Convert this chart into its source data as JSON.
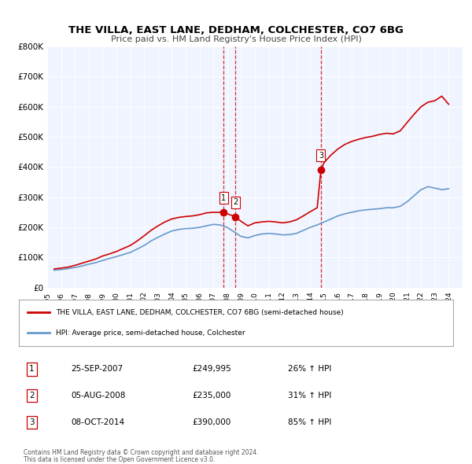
{
  "title": "THE VILLA, EAST LANE, DEDHAM, COLCHESTER, CO7 6BG",
  "subtitle": "Price paid vs. HM Land Registry's House Price Index (HPI)",
  "legend_line1": "THE VILLA, EAST LANE, DEDHAM, COLCHESTER, CO7 6BG (semi-detached house)",
  "legend_line2": "HPI: Average price, semi-detached house, Colchester",
  "footer1": "Contains HM Land Registry data © Crown copyright and database right 2024.",
  "footer2": "This data is licensed under the Open Government Licence v3.0.",
  "house_color": "#cc0000",
  "hpi_color": "#6699cc",
  "background_color": "#f0f4ff",
  "plot_bg_color": "#f0f4ff",
  "sale_points": [
    {
      "label": "1",
      "date_num": 2007.73,
      "price": 249995,
      "marker_color": "#cc0000"
    },
    {
      "label": "2",
      "date_num": 2008.59,
      "price": 235000,
      "marker_color": "#cc0000"
    },
    {
      "label": "3",
      "date_num": 2014.77,
      "price": 390000,
      "marker_color": "#cc0000"
    }
  ],
  "vline_dates": [
    2007.73,
    2008.59,
    2014.77
  ],
  "table_rows": [
    [
      "1",
      "25-SEP-2007",
      "£249,995",
      "26% ↑ HPI"
    ],
    [
      "2",
      "05-AUG-2008",
      "£235,000",
      "31% ↑ HPI"
    ],
    [
      "3",
      "08-OCT-2014",
      "£390,000",
      "85% ↑ HPI"
    ]
  ],
  "ylim": [
    0,
    800000
  ],
  "yticks": [
    0,
    100000,
    200000,
    300000,
    400000,
    500000,
    600000,
    700000,
    800000
  ],
  "ytick_labels": [
    "£0",
    "£100K",
    "£200K",
    "£300K",
    "£400K",
    "£500K",
    "£600K",
    "£700K",
    "£800K"
  ],
  "xlim": [
    1995.0,
    2025.0
  ],
  "hpi_data": {
    "years": [
      1995.5,
      1996.0,
      1996.5,
      1997.0,
      1997.5,
      1998.0,
      1998.5,
      1999.0,
      1999.5,
      2000.0,
      2000.5,
      2001.0,
      2001.5,
      2002.0,
      2002.5,
      2003.0,
      2003.5,
      2004.0,
      2004.5,
      2005.0,
      2005.5,
      2006.0,
      2006.5,
      2007.0,
      2007.5,
      2008.0,
      2008.5,
      2009.0,
      2009.5,
      2010.0,
      2010.5,
      2011.0,
      2011.5,
      2012.0,
      2012.5,
      2013.0,
      2013.5,
      2014.0,
      2014.5,
      2015.0,
      2015.5,
      2016.0,
      2016.5,
      2017.0,
      2017.5,
      2018.0,
      2018.5,
      2019.0,
      2019.5,
      2020.0,
      2020.5,
      2021.0,
      2021.5,
      2022.0,
      2022.5,
      2023.0,
      2023.5,
      2024.0
    ],
    "values": [
      58000,
      60000,
      63000,
      67000,
      72000,
      78000,
      83000,
      90000,
      97000,
      103000,
      110000,
      117000,
      128000,
      140000,
      155000,
      167000,
      178000,
      188000,
      193000,
      196000,
      197000,
      200000,
      205000,
      210000,
      208000,
      200000,
      185000,
      170000,
      165000,
      173000,
      178000,
      180000,
      178000,
      175000,
      176000,
      180000,
      190000,
      200000,
      208000,
      218000,
      228000,
      238000,
      245000,
      250000,
      255000,
      258000,
      260000,
      262000,
      265000,
      265000,
      270000,
      285000,
      305000,
      325000,
      335000,
      330000,
      325000,
      328000
    ]
  },
  "house_data": {
    "years": [
      1995.5,
      1996.0,
      1996.5,
      1997.0,
      1997.5,
      1998.0,
      1998.5,
      1999.0,
      1999.5,
      2000.0,
      2000.5,
      2001.0,
      2001.5,
      2002.0,
      2002.5,
      2003.0,
      2003.5,
      2004.0,
      2004.5,
      2005.0,
      2005.5,
      2006.0,
      2006.5,
      2007.0,
      2007.5,
      2007.73,
      2008.0,
      2008.5,
      2008.59,
      2009.0,
      2009.5,
      2010.0,
      2010.5,
      2011.0,
      2011.5,
      2012.0,
      2012.5,
      2013.0,
      2013.5,
      2014.0,
      2014.5,
      2014.77,
      2015.0,
      2015.5,
      2016.0,
      2016.5,
      2017.0,
      2017.5,
      2018.0,
      2018.5,
      2019.0,
      2019.5,
      2020.0,
      2020.5,
      2021.0,
      2021.5,
      2022.0,
      2022.5,
      2023.0,
      2023.5,
      2024.0
    ],
    "values": [
      62000,
      65000,
      68000,
      74000,
      81000,
      88000,
      95000,
      105000,
      112000,
      120000,
      130000,
      140000,
      155000,
      172000,
      190000,
      205000,
      218000,
      228000,
      233000,
      236000,
      238000,
      242000,
      248000,
      250000,
      249995,
      249995,
      245000,
      237000,
      235000,
      220000,
      205000,
      215000,
      218000,
      220000,
      218000,
      215000,
      218000,
      225000,
      238000,
      252000,
      265000,
      390000,
      415000,
      440000,
      460000,
      475000,
      485000,
      492000,
      498000,
      502000,
      508000,
      512000,
      510000,
      520000,
      548000,
      575000,
      600000,
      615000,
      620000,
      635000,
      608000
    ]
  }
}
